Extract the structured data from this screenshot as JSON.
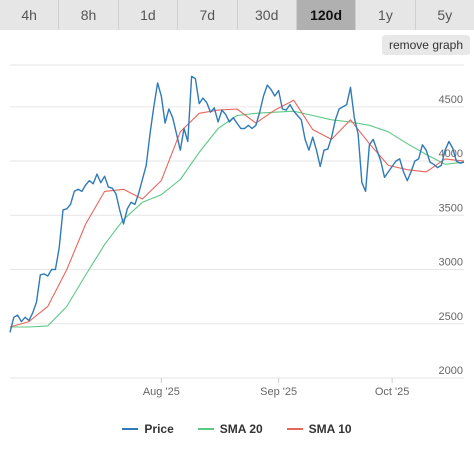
{
  "tabs": [
    {
      "label": "4h",
      "active": false
    },
    {
      "label": "8h",
      "active": false
    },
    {
      "label": "1d",
      "active": false
    },
    {
      "label": "7d",
      "active": false
    },
    {
      "label": "30d",
      "active": false
    },
    {
      "label": "120d",
      "active": true
    },
    {
      "label": "1y",
      "active": false
    },
    {
      "label": "5y",
      "active": false
    }
  ],
  "remove_graph_label": "remove graph",
  "colors": {
    "price": "#2f7ab8",
    "sma20": "#5cc985",
    "sma10": "#e8665c",
    "grid": "#e6e6e6",
    "axis_text": "#666666"
  },
  "chart_data": {
    "type": "line",
    "x_ticks": [
      {
        "label": "Aug '25",
        "day": 40
      },
      {
        "label": "Sep '25",
        "day": 71
      },
      {
        "label": "Oct '25",
        "day": 101
      }
    ],
    "xlim": [
      0,
      120
    ],
    "ylim": [
      2000,
      4950
    ],
    "y_ticks": [
      2000,
      2500,
      3000,
      3500,
      4000,
      4500
    ],
    "grid": "horizontal",
    "legend_position": "bottom",
    "series": [
      {
        "name": "Price",
        "color_key": "price",
        "x": [
          0,
          1,
          2,
          3,
          4,
          5,
          6,
          7,
          8,
          9,
          10,
          11,
          12,
          13,
          14,
          15,
          16,
          17,
          18,
          19,
          20,
          21,
          22,
          23,
          24,
          25,
          26,
          27,
          28,
          29,
          30,
          31,
          32,
          33,
          34,
          35,
          36,
          37,
          38,
          39,
          40,
          41,
          42,
          43,
          44,
          45,
          46,
          47,
          48,
          49,
          50,
          51,
          52,
          53,
          54,
          55,
          56,
          57,
          58,
          59,
          60,
          61,
          62,
          63,
          64,
          65,
          66,
          67,
          68,
          69,
          70,
          71,
          72,
          73,
          74,
          75,
          76,
          77,
          78,
          79,
          80,
          81,
          82,
          83,
          84,
          85,
          86,
          87,
          88,
          89,
          90,
          91,
          92,
          93,
          94,
          95,
          96,
          97,
          98,
          99,
          100,
          101,
          102,
          103,
          104,
          105,
          106,
          107,
          108,
          109,
          110,
          111,
          112,
          113,
          114,
          115,
          116,
          117,
          118,
          119,
          120
        ],
        "values": [
          2420,
          2560,
          2580,
          2520,
          2560,
          2530,
          2600,
          2700,
          2950,
          2960,
          2940,
          3000,
          3000,
          3200,
          3550,
          3560,
          3600,
          3720,
          3740,
          3720,
          3780,
          3820,
          3790,
          3880,
          3800,
          3860,
          3760,
          3750,
          3700,
          3550,
          3420,
          3560,
          3620,
          3600,
          3700,
          3830,
          3960,
          4250,
          4500,
          4720,
          4600,
          4350,
          4480,
          4400,
          4250,
          4100,
          4300,
          4180,
          4780,
          4760,
          4530,
          4580,
          4540,
          4450,
          4490,
          4360,
          4470,
          4430,
          4360,
          4400,
          4350,
          4300,
          4300,
          4330,
          4300,
          4330,
          4450,
          4600,
          4700,
          4660,
          4600,
          4650,
          4480,
          4470,
          4520,
          4460,
          4420,
          4380,
          4200,
          4100,
          4220,
          4100,
          3950,
          4100,
          4110,
          4220,
          4380,
          4480,
          4500,
          4520,
          4680,
          4400,
          4250,
          3800,
          3720,
          4150,
          4200,
          4100,
          4000,
          3850,
          3900,
          3950,
          4000,
          4020,
          3900,
          3820,
          3900,
          4000,
          4020,
          4150,
          4100,
          3990,
          3970,
          3940,
          3960,
          4100,
          4180,
          4120,
          4000,
          3980,
          3990
        ]
      },
      {
        "name": "SMA 20",
        "color_key": "sma20",
        "x": [
          0,
          5,
          10,
          15,
          20,
          25,
          30,
          35,
          40,
          45,
          50,
          55,
          60,
          65,
          70,
          75,
          80,
          85,
          90,
          95,
          100,
          105,
          110,
          115,
          120
        ],
        "values": [
          2470,
          2470,
          2480,
          2660,
          2950,
          3230,
          3460,
          3620,
          3690,
          3830,
          4080,
          4300,
          4420,
          4440,
          4450,
          4460,
          4420,
          4380,
          4360,
          4330,
          4270,
          4160,
          4060,
          3970,
          3990
        ]
      },
      {
        "name": "SMA 10",
        "color_key": "sma10",
        "x": [
          0,
          5,
          10,
          15,
          20,
          25,
          30,
          35,
          40,
          45,
          50,
          55,
          60,
          65,
          70,
          75,
          80,
          85,
          90,
          95,
          100,
          105,
          110,
          115,
          120
        ],
        "values": [
          2470,
          2520,
          2660,
          3000,
          3420,
          3720,
          3740,
          3650,
          3820,
          4270,
          4440,
          4470,
          4480,
          4350,
          4470,
          4560,
          4290,
          4200,
          4380,
          4160,
          3960,
          3920,
          3900,
          4020,
          4000
        ]
      }
    ]
  }
}
